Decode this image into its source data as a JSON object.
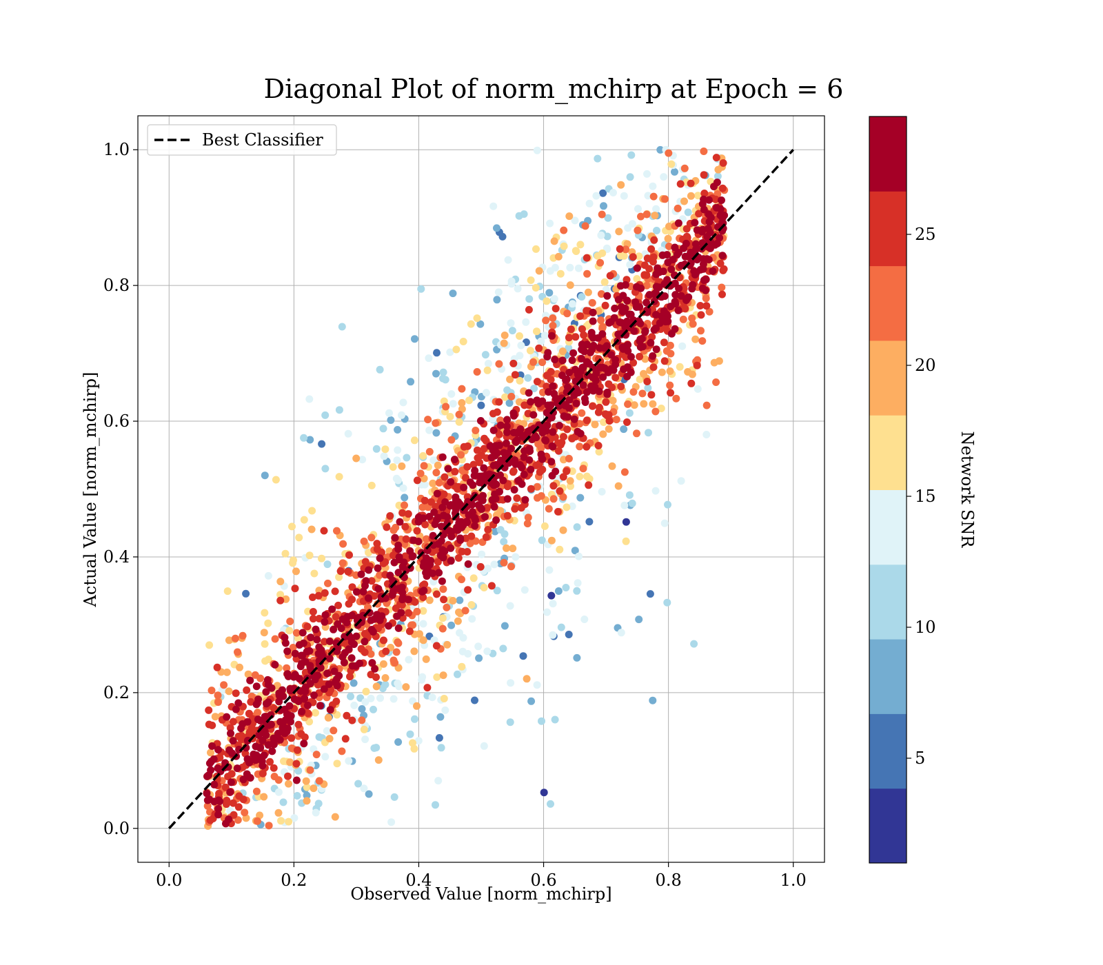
{
  "chart_data": {
    "type": "scatter",
    "title": "Diagonal Plot of norm_mchirp at Epoch = 6",
    "xlabel": "Observed Value [norm_mchirp]",
    "ylabel": "Actual Value [norm_mchirp]",
    "xlim": [
      -0.05,
      1.05
    ],
    "ylim": [
      -0.05,
      1.05
    ],
    "x_ticks": [
      0.0,
      0.2,
      0.4,
      0.6,
      0.8,
      1.0
    ],
    "y_ticks": [
      0.0,
      0.2,
      0.4,
      0.6,
      0.8,
      1.0
    ],
    "x_tick_labels": [
      "0.0",
      "0.2",
      "0.4",
      "0.6",
      "0.8",
      "1.0"
    ],
    "y_tick_labels": [
      "0.0",
      "0.2",
      "0.4",
      "0.6",
      "0.8",
      "1.0"
    ],
    "grid": true,
    "legend": {
      "placement": "upper-left",
      "entries": [
        "Best Classifier"
      ]
    },
    "reference_line": {
      "label": "Best Classifier",
      "x": [
        0.0,
        1.0
      ],
      "y": [
        0.0,
        1.0
      ],
      "style": "dashed",
      "color": "#000000"
    },
    "colorbar": {
      "label": "Network SNR",
      "range": [
        1,
        29.5
      ],
      "tick_values": [
        5,
        10,
        15,
        20,
        25
      ],
      "tick_labels": [
        "5",
        "10",
        "15",
        "20",
        "25"
      ],
      "colormap": "RdYlBu_r (discrete, 10 levels)",
      "colors": [
        "#313695",
        "#4575b4",
        "#74add1",
        "#abd9e9",
        "#e0f3f8",
        "#fee090",
        "#fdae61",
        "#f46d43",
        "#d73027",
        "#a50026"
      ]
    },
    "scatter_summary": {
      "description": "dense cloud of points along the diagonal; high-SNR (dark red) points cluster tightly around y = x, low-SNR (blue) points spread toward the upper-left and lower-right",
      "x_range": [
        0.06,
        0.89
      ],
      "y_range": [
        0.0,
        1.0
      ]
    }
  }
}
